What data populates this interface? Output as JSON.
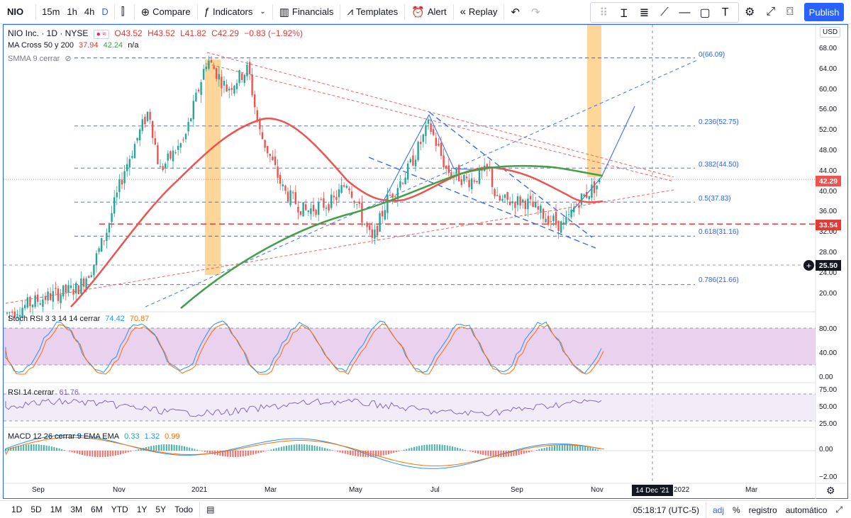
{
  "toolbar": {
    "symbol": "NIO",
    "intervals": [
      "15m",
      "1h",
      "4h",
      "D"
    ],
    "active_interval": "D",
    "compare_label": "Compare",
    "indicators_label": "Indicators",
    "financials_label": "Financials",
    "templates_label": "Templates",
    "alert_label": "Alert",
    "replay_label": "Replay",
    "publish_label": "Publish",
    "accent": "#2962ff"
  },
  "legend": {
    "title": "NIO Inc. · 1D · NYSE",
    "open": "O43.52",
    "high": "H43.52",
    "low": "L41.82",
    "close": "C42.29",
    "change": "−0.83 (−1.92%)",
    "ma_name": "MA Cross 50 y 200",
    "ma_val1": "37.94",
    "ma_val2": "42.24",
    "ma_val3": "n/a",
    "smma_name": "SMMA 9 cerrar",
    "stoch_name": "Stoch RSI 3 3 14 14 cerrar",
    "stoch_k": "74.42",
    "stoch_d": "70.87",
    "rsi_name": "RSI 14 cerrar",
    "rsi_val": "61.76",
    "macd_name": "MACD 12 26 cerrar 9 EMA EMA",
    "macd_v1": "0.33",
    "macd_v2": "1.32",
    "macd_v3": "0.99"
  },
  "axis": {
    "currency": "USD",
    "price_ticks": [
      "68.00",
      "64.00",
      "60.00",
      "56.00",
      "52.00",
      "48.00",
      "44.00",
      "40.00",
      "36.00",
      "32.00",
      "28.00",
      "24.00",
      "20.00"
    ],
    "current_price": "42.29",
    "current_price_color": "#ef5350",
    "level_price": "33.54",
    "level_price_color": "#e53935",
    "cursor_price": "25.50",
    "stoch_ticks": [
      "80.00",
      "40.00",
      "0.00"
    ],
    "rsi_ticks": [
      "75.00",
      "50.00",
      "25.00"
    ],
    "macd_ticks": [
      "0.00",
      "−2.00"
    ],
    "date_ticks": [
      "Sep",
      "Nov",
      "2021",
      "Mar",
      "May",
      "Jul",
      "Sep",
      "Nov",
      "2022",
      "Mar"
    ],
    "cursor_date": "14 Dec '21"
  },
  "fib": {
    "levels": [
      "0(66.09)",
      "0.236(52.75)",
      "0.382(44.50)",
      "0.5(37.83)",
      "0.618(31.16)",
      "0.786(21.66)"
    ]
  },
  "bottombar": {
    "ranges": [
      "1D",
      "5D",
      "1M",
      "3M",
      "6M",
      "YTD",
      "1Y",
      "5Y",
      "Todo"
    ],
    "time": "05:18:17 (UTC-5)",
    "adj": "adj",
    "percent": "%",
    "log": "registro",
    "auto": "automático"
  },
  "colors": {
    "up": "#26a69a",
    "down": "#ef5350",
    "ma50": "#ef5350",
    "ma200": "#43a047",
    "fib": "#2962ff",
    "highlight": "#ffcc80",
    "stoch_band": "#e1bee7"
  }
}
